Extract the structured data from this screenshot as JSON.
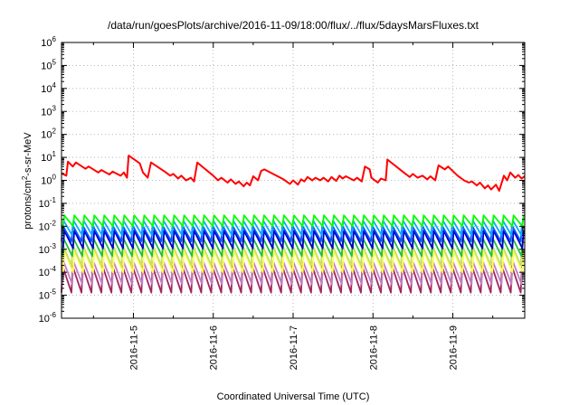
{
  "chart_data": {
    "type": "line",
    "title": "/data/run/goesPlots/archive/2016-11-09/18:00/flux/../flux/5daysMarsFluxes.txt",
    "xlabel": "Coordinated Universal Time (UTC)",
    "ylabel": {
      "prefix": "protons/cm",
      "sup": "2",
      "suffix": "-s-sr-MeV"
    },
    "y_scale": "log",
    "ylim_exponents": [
      -6,
      6
    ],
    "y_tick_base": "10",
    "xlim_days": [
      0,
      5.8
    ],
    "x_tick_labels": [
      "2016-11-5",
      "2016-11-6",
      "2016-11-7",
      "2016-11-8",
      "2016-11-9"
    ],
    "x_tick_positions_days": [
      0.9,
      1.9,
      2.9,
      3.9,
      4.9
    ],
    "grid": true,
    "legend": "none",
    "sawtooth_period_days": 0.125,
    "series": [
      {
        "color": "#ff0000",
        "points": [
          [
            0.0,
            2.0
          ],
          [
            0.06,
            1.6
          ],
          [
            0.08,
            6.5
          ],
          [
            0.14,
            4.0
          ],
          [
            0.18,
            6.0
          ],
          [
            0.3,
            3.2
          ],
          [
            0.34,
            4.0
          ],
          [
            0.46,
            2.2
          ],
          [
            0.5,
            2.8
          ],
          [
            0.6,
            1.8
          ],
          [
            0.64,
            2.4
          ],
          [
            0.74,
            1.6
          ],
          [
            0.78,
            2.2
          ],
          [
            0.82,
            1.3
          ],
          [
            0.84,
            12.0
          ],
          [
            0.98,
            5.5
          ],
          [
            1.02,
            2.2
          ],
          [
            1.08,
            1.3
          ],
          [
            1.12,
            6.0
          ],
          [
            1.3,
            2.3
          ],
          [
            1.36,
            1.6
          ],
          [
            1.4,
            1.9
          ],
          [
            1.46,
            1.2
          ],
          [
            1.5,
            1.6
          ],
          [
            1.56,
            1.0
          ],
          [
            1.62,
            1.3
          ],
          [
            1.66,
            0.9
          ],
          [
            1.7,
            6.0
          ],
          [
            1.76,
            4.0
          ],
          [
            1.9,
            1.6
          ],
          [
            1.96,
            1.0
          ],
          [
            2.0,
            1.3
          ],
          [
            2.08,
            0.8
          ],
          [
            2.12,
            1.1
          ],
          [
            2.18,
            0.7
          ],
          [
            2.22,
            0.9
          ],
          [
            2.28,
            0.55
          ],
          [
            2.32,
            0.8
          ],
          [
            2.36,
            0.6
          ],
          [
            2.4,
            1.5
          ],
          [
            2.46,
            1.0
          ],
          [
            2.5,
            2.6
          ],
          [
            2.54,
            3.0
          ],
          [
            2.78,
            1.1
          ],
          [
            2.86,
            0.7
          ],
          [
            2.9,
            1.0
          ],
          [
            2.96,
            0.65
          ],
          [
            3.0,
            1.1
          ],
          [
            3.04,
            0.9
          ],
          [
            3.08,
            1.4
          ],
          [
            3.14,
            1.0
          ],
          [
            3.18,
            1.3
          ],
          [
            3.24,
            1.0
          ],
          [
            3.28,
            1.3
          ],
          [
            3.34,
            0.9
          ],
          [
            3.38,
            1.4
          ],
          [
            3.44,
            0.95
          ],
          [
            3.48,
            1.6
          ],
          [
            3.52,
            1.2
          ],
          [
            3.56,
            1.5
          ],
          [
            3.66,
            1.0
          ],
          [
            3.7,
            1.3
          ],
          [
            3.76,
            0.9
          ],
          [
            3.8,
            4.0
          ],
          [
            3.86,
            3.0
          ],
          [
            3.88,
            1.3
          ],
          [
            3.96,
            0.8
          ],
          [
            4.0,
            1.2
          ],
          [
            4.06,
            1.0
          ],
          [
            4.08,
            8.0
          ],
          [
            4.3,
            2.0
          ],
          [
            4.36,
            1.4
          ],
          [
            4.4,
            1.9
          ],
          [
            4.46,
            1.3
          ],
          [
            4.52,
            1.6
          ],
          [
            4.58,
            1.1
          ],
          [
            4.62,
            1.5
          ],
          [
            4.68,
            1.0
          ],
          [
            4.72,
            4.5
          ],
          [
            4.8,
            3.0
          ],
          [
            4.84,
            4.0
          ],
          [
            4.96,
            1.6
          ],
          [
            5.04,
            1.0
          ],
          [
            5.1,
            0.8
          ],
          [
            5.14,
            0.9
          ],
          [
            5.2,
            0.6
          ],
          [
            5.24,
            0.8
          ],
          [
            5.3,
            0.45
          ],
          [
            5.34,
            0.6
          ],
          [
            5.38,
            0.4
          ],
          [
            5.44,
            0.65
          ],
          [
            5.48,
            0.35
          ],
          [
            5.54,
            1.6
          ],
          [
            5.58,
            1.0
          ],
          [
            5.62,
            2.2
          ],
          [
            5.68,
            1.3
          ],
          [
            5.72,
            1.7
          ],
          [
            5.76,
            1.2
          ],
          [
            5.8,
            1.5
          ]
        ]
      },
      {
        "color": "#00ff00",
        "peak": 0.03,
        "trough": 0.01
      },
      {
        "color": "#00aaff",
        "peak": 0.018,
        "trough": 0.004
      },
      {
        "color": "#0055ff",
        "peak": 0.011,
        "trough": 0.0022
      },
      {
        "color": "#0000cc",
        "peak": 0.0065,
        "trough": 0.0011
      },
      {
        "color": "#20c040",
        "peak": 0.003,
        "trough": 0.0005
      },
      {
        "color": "#c8e060",
        "peak": 0.0016,
        "trough": 0.0002
      },
      {
        "color": "#ffff50",
        "peak": 0.0009,
        "trough": 0.0001
      },
      {
        "color": "#c080c0",
        "peak": 0.0003,
        "trough": 3e-05
      },
      {
        "color": "#a02860",
        "peak": 0.00018,
        "trough": 1.3e-05
      }
    ]
  }
}
